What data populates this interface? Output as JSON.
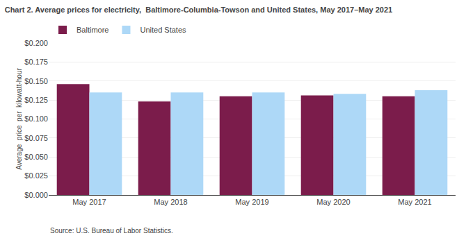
{
  "chart_data": {
    "type": "bar",
    "title": "Chart 2. Average prices for electricity,  Baltimore-Columbia-Towson and United States, May 2017–May 2021",
    "ylabel": "Average  price  per  kilowatt-hour",
    "categories": [
      "May 2017",
      "May 2018",
      "May 2019",
      "May 2020",
      "May 2021"
    ],
    "series": [
      {
        "name": "Baltimore",
        "color": "#7B1C4B",
        "values": [
          0.146,
          0.123,
          0.13,
          0.131,
          0.13
        ]
      },
      {
        "name": "United States",
        "color": "#ADD8F7",
        "values": [
          0.135,
          0.135,
          0.135,
          0.133,
          0.138
        ]
      }
    ],
    "ylim": [
      0.0,
      0.2
    ],
    "yticks": [
      {
        "value": 0.0,
        "label": "$0.000"
      },
      {
        "value": 0.025,
        "label": "$0.025"
      },
      {
        "value": 0.05,
        "label": "$0.050"
      },
      {
        "value": 0.075,
        "label": "$0.075"
      },
      {
        "value": 0.1,
        "label": "$0.100"
      },
      {
        "value": 0.125,
        "label": "$0.125"
      },
      {
        "value": 0.15,
        "label": "$0.150"
      },
      {
        "value": 0.175,
        "label": "$0.175"
      },
      {
        "value": 0.2,
        "label": "$0.200"
      }
    ],
    "grid": true,
    "legend": "top",
    "annotations": [
      "Source: U.S. Bureau of Labor Statistics."
    ]
  }
}
